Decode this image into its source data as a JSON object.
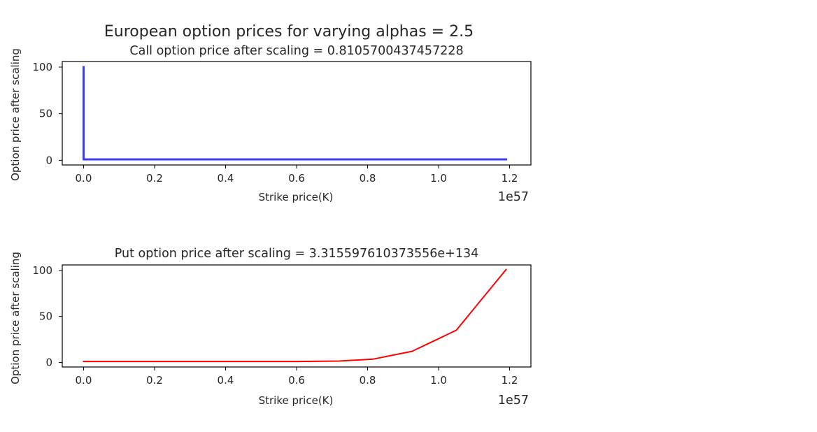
{
  "figure": {
    "suptitle": "European option prices for varying alphas = 2.5"
  },
  "chart_data": [
    {
      "type": "line",
      "title": "Call option price after scaling = 0.8105700437457228",
      "xlabel": "Strike price(K)",
      "ylabel": "Option price after scaling",
      "x_offset_label": "1e57",
      "xlim": [
        -0.06,
        1.26
      ],
      "ylim": [
        -5,
        106
      ],
      "xticks": [
        0.0,
        0.2,
        0.4,
        0.6,
        0.8,
        1.0,
        1.2
      ],
      "xtick_labels": [
        "0.0",
        "0.2",
        "0.4",
        "0.6",
        "0.8",
        "1.0",
        "1.2"
      ],
      "yticks": [
        0,
        50,
        100
      ],
      "ytick_labels": [
        "0",
        "50",
        "100"
      ],
      "grid": false,
      "series": [
        {
          "color": "#3a3ef5",
          "x": [
            0.0,
            0.0,
            0.1,
            0.2,
            0.3,
            0.4,
            0.5,
            0.6,
            0.7,
            0.8,
            0.9,
            1.0,
            1.1,
            1.19
          ],
          "y": [
            100,
            1,
            1,
            1,
            1,
            1,
            1,
            1,
            1,
            1,
            1,
            1,
            1,
            1
          ]
        }
      ]
    },
    {
      "type": "line",
      "title": "Put option price after scaling = 3.315597610373556e+134",
      "xlabel": "Strike price(K)",
      "ylabel": "Option price after scaling",
      "x_offset_label": "1e57",
      "xlim": [
        -0.06,
        1.26
      ],
      "ylim": [
        -5,
        106
      ],
      "xticks": [
        0.0,
        0.2,
        0.4,
        0.6,
        0.8,
        1.0,
        1.2
      ],
      "xtick_labels": [
        "0.0",
        "0.2",
        "0.4",
        "0.6",
        "0.8",
        "1.0",
        "1.2"
      ],
      "yticks": [
        0,
        50,
        100
      ],
      "ytick_labels": [
        "0",
        "50",
        "100"
      ],
      "grid": false,
      "series": [
        {
          "color": "#ff0000",
          "x": [
            0.0,
            0.1,
            0.2,
            0.3,
            0.4,
            0.5,
            0.6,
            0.72,
            0.815,
            0.925,
            1.05,
            1.19
          ],
          "y": [
            1,
            1,
            1,
            1,
            1,
            1,
            1,
            1.5,
            3.5,
            12,
            35,
            101
          ]
        }
      ]
    }
  ]
}
